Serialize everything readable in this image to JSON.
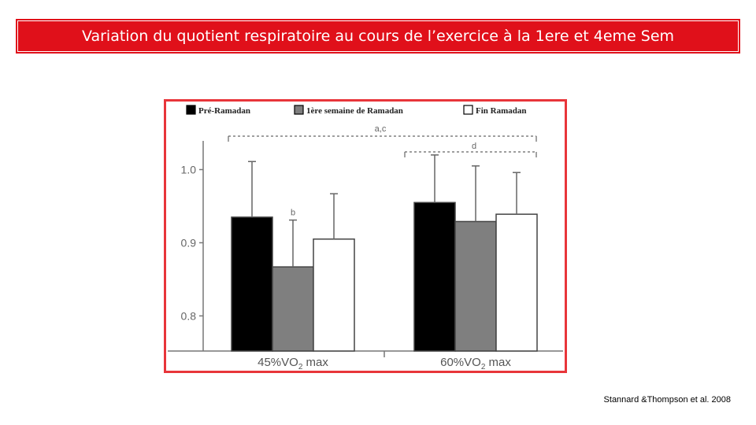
{
  "slide": {
    "title": "Variation du quotient respiratoire au cours de l’exercice à la 1ere et 4eme Sem",
    "citation": "Stannard &Thompson et al. 2008"
  },
  "colors": {
    "banner": "#e0101a",
    "frame": "#e8353a",
    "pre_ramadan": "#000000",
    "week1": "#7f7f7f",
    "end_ramadan": "#ffffff"
  },
  "chart_data": {
    "type": "bar",
    "categories": [
      "45%VO2 max",
      "60%VO2 max"
    ],
    "category_labels": [
      {
        "main": "45%VO",
        "sub": "2",
        "tail": " max"
      },
      {
        "main": "60%VO",
        "sub": "2",
        "tail": " max"
      }
    ],
    "series": [
      {
        "name": "Pré-Ramadan",
        "values": [
          0.935,
          0.955
        ],
        "errors": [
          0.076,
          0.065
        ],
        "color": "#000000"
      },
      {
        "name": "1ère semaine de Ramadan",
        "values": [
          0.867,
          0.929
        ],
        "errors": [
          0.064,
          0.076
        ],
        "color": "#7f7f7f"
      },
      {
        "name": "Fin Ramadan",
        "values": [
          0.905,
          0.939
        ],
        "errors": [
          0.062,
          0.057
        ],
        "color": "#ffffff"
      }
    ],
    "y_ticks": [
      "0.8",
      "0.9",
      "1.0"
    ],
    "ylim": [
      0.752,
      1.05
    ],
    "legend_position": "top",
    "annotations": [
      {
        "text": "a,c",
        "spans": "both groups"
      },
      {
        "text": "d",
        "spans": "60%VO2 max group"
      },
      {
        "text": "b",
        "above": "1ère semaine de Ramadan, 45%VO2 max"
      }
    ],
    "grid": false,
    "xlabel": "",
    "ylabel": ""
  }
}
